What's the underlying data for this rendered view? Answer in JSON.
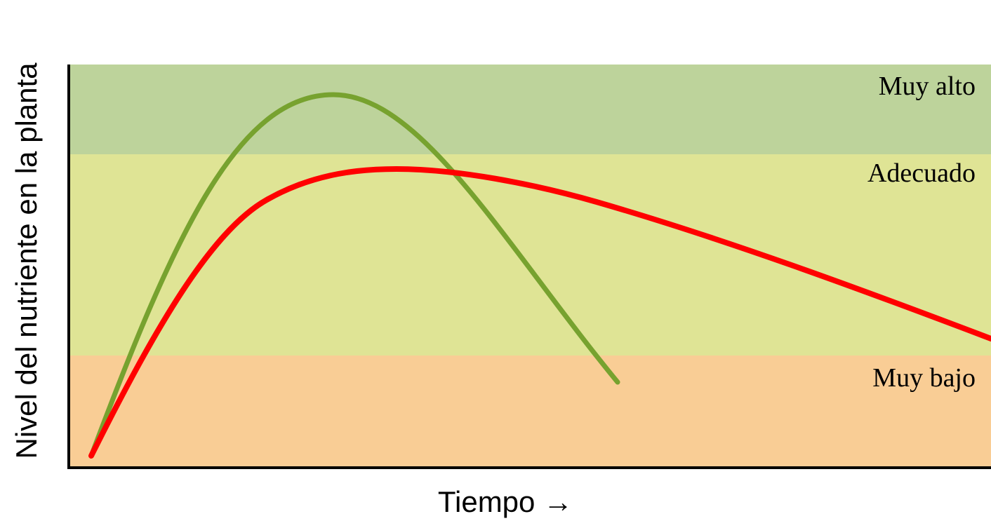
{
  "y_axis_label": "Nivel del nutriente en la planta",
  "x_axis_label": "Tiempo →",
  "zones": [
    {
      "label": "Muy alto"
    },
    {
      "label": "Adecuado"
    },
    {
      "label": "Muy bajo"
    }
  ]
}
